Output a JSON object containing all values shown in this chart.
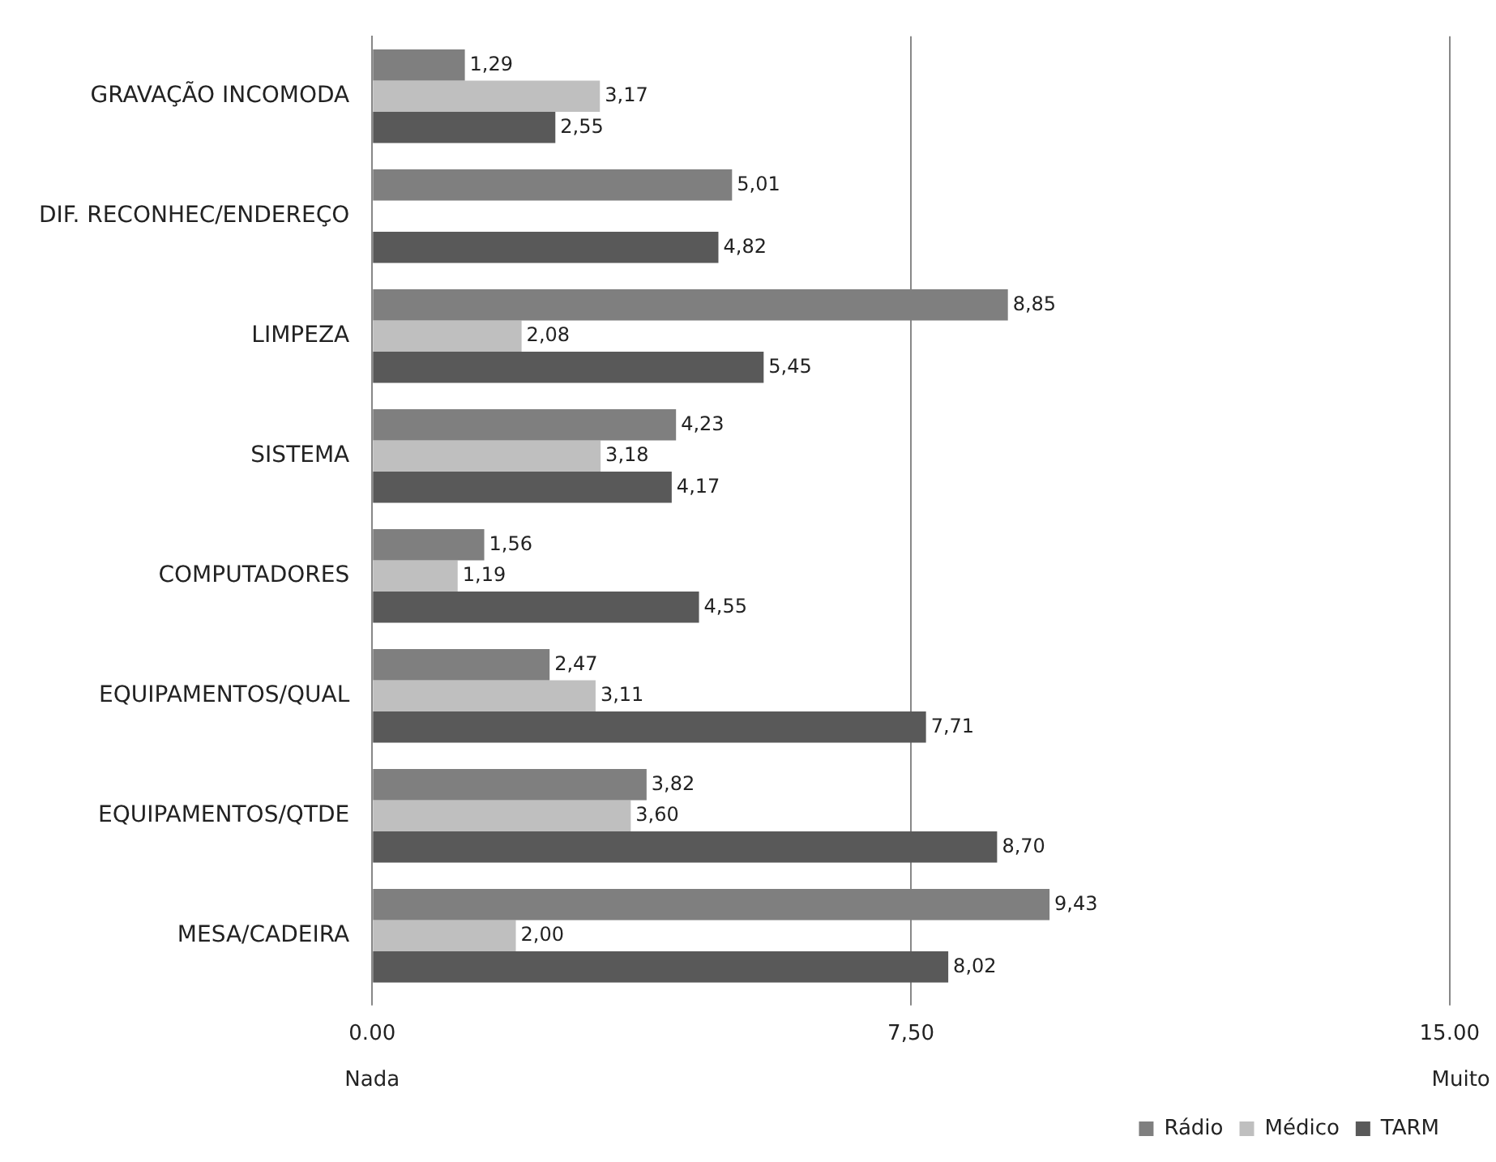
{
  "chart_data": {
    "type": "bar",
    "orientation": "horizontal",
    "categories": [
      "GRAVAÇÃO INCOMODA",
      "DIF. RECONHEC/ENDEREÇO",
      "LIMPEZA",
      "SISTEMA",
      "COMPUTADORES",
      "EQUIPAMENTOS/QUAL",
      "EQUIPAMENTOS/QTDE",
      "MESA/CADEIRA"
    ],
    "series": [
      {
        "name": "Rádio",
        "color": "#7f7f7f",
        "values": [
          1.29,
          5.01,
          8.85,
          4.23,
          1.56,
          2.47,
          3.82,
          9.43
        ],
        "value_labels": [
          "1,29",
          "5,01",
          "8,85",
          "4,23",
          "1,56",
          "2,47",
          "3,82",
          "9,43"
        ]
      },
      {
        "name": "Médico",
        "color": "#bfbfbf",
        "values": [
          3.17,
          null,
          2.08,
          3.18,
          1.19,
          3.11,
          3.6,
          2.0
        ],
        "value_labels": [
          "3,17",
          null,
          "2,08",
          "3,18",
          "1,19",
          "3,11",
          "3,60",
          "2,00"
        ]
      },
      {
        "name": "TARM",
        "color": "#595959",
        "values": [
          2.55,
          4.82,
          5.45,
          4.17,
          4.55,
          7.71,
          8.7,
          8.02
        ],
        "value_labels": [
          "2,55",
          "4,82",
          "5,45",
          "4,17",
          "4,55",
          "7,71",
          "8,70",
          "8,02"
        ]
      }
    ],
    "xlim": [
      0,
      15
    ],
    "xticks": [
      {
        "value": 0,
        "label": "0.00"
      },
      {
        "value": 7.5,
        "label": "7,50"
      },
      {
        "value": 15,
        "label": "15.00"
      }
    ],
    "annotations": [
      "Nada",
      "Muito"
    ],
    "grid": "x",
    "legend": "bottom"
  }
}
